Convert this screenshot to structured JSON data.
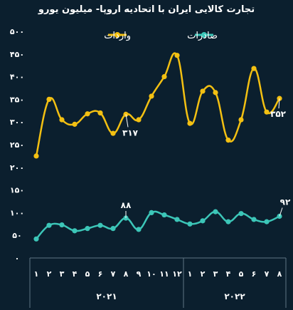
{
  "title": "تجارت کالایی ایران با اتحادیه اروپا- میلیون یورو",
  "colors": {
    "imports": "#f3c012",
    "exports": "#3cc6b8",
    "background": "#0b1f2e",
    "axis_text": "#ffffff",
    "grid": "#5f7584"
  },
  "chart_data": {
    "type": "line",
    "title": "تجارت کالایی ایران با اتحادیه اروپا- میلیون یورو",
    "ylim": [
      0,
      500
    ],
    "yticks": [
      "۰",
      "۵۰",
      "۱۰۰",
      "۱۵۰",
      "۲۰۰",
      "۲۵۰",
      "۳۰۰",
      "۳۵۰",
      "۴۰۰",
      "۴۵۰",
      "۵۰۰"
    ],
    "ytick_values": [
      0,
      50,
      100,
      150,
      200,
      250,
      300,
      350,
      400,
      450,
      500
    ],
    "x_labels": [
      "۱",
      "۲",
      "۳",
      "۴",
      "۵",
      "۶",
      "۷",
      "۸",
      "۹",
      "۱۰",
      "۱۱",
      "۱۲",
      "۱",
      "۲",
      "۳",
      "۴",
      "۵",
      "۶",
      "۷",
      "۸"
    ],
    "year_groups": [
      {
        "label": "۲۰۲۱",
        "start": 0,
        "end": 11
      },
      {
        "label": "۲۰۲۲",
        "start": 12,
        "end": 19
      }
    ],
    "legend_position": "top",
    "series": [
      {
        "name": "واردات",
        "color_key": "imports",
        "values": [
          225,
          350,
          305,
          295,
          318,
          320,
          275,
          317,
          305,
          357,
          400,
          447,
          297,
          368,
          365,
          260,
          305,
          418,
          322,
          352
        ]
      },
      {
        "name": "صادرات",
        "color_key": "exports",
        "values": [
          42,
          72,
          73,
          60,
          65,
          72,
          65,
          88,
          63,
          100,
          95,
          85,
          75,
          82,
          102,
          80,
          98,
          85,
          80,
          92
        ]
      }
    ],
    "annotations": [
      {
        "series": 0,
        "index": 7,
        "text": "۳۱۷"
      },
      {
        "series": 0,
        "index": 19,
        "text": "۳۵۲"
      },
      {
        "series": 1,
        "index": 7,
        "text": "۸۸"
      },
      {
        "series": 1,
        "index": 19,
        "text": "۹۲"
      }
    ]
  }
}
